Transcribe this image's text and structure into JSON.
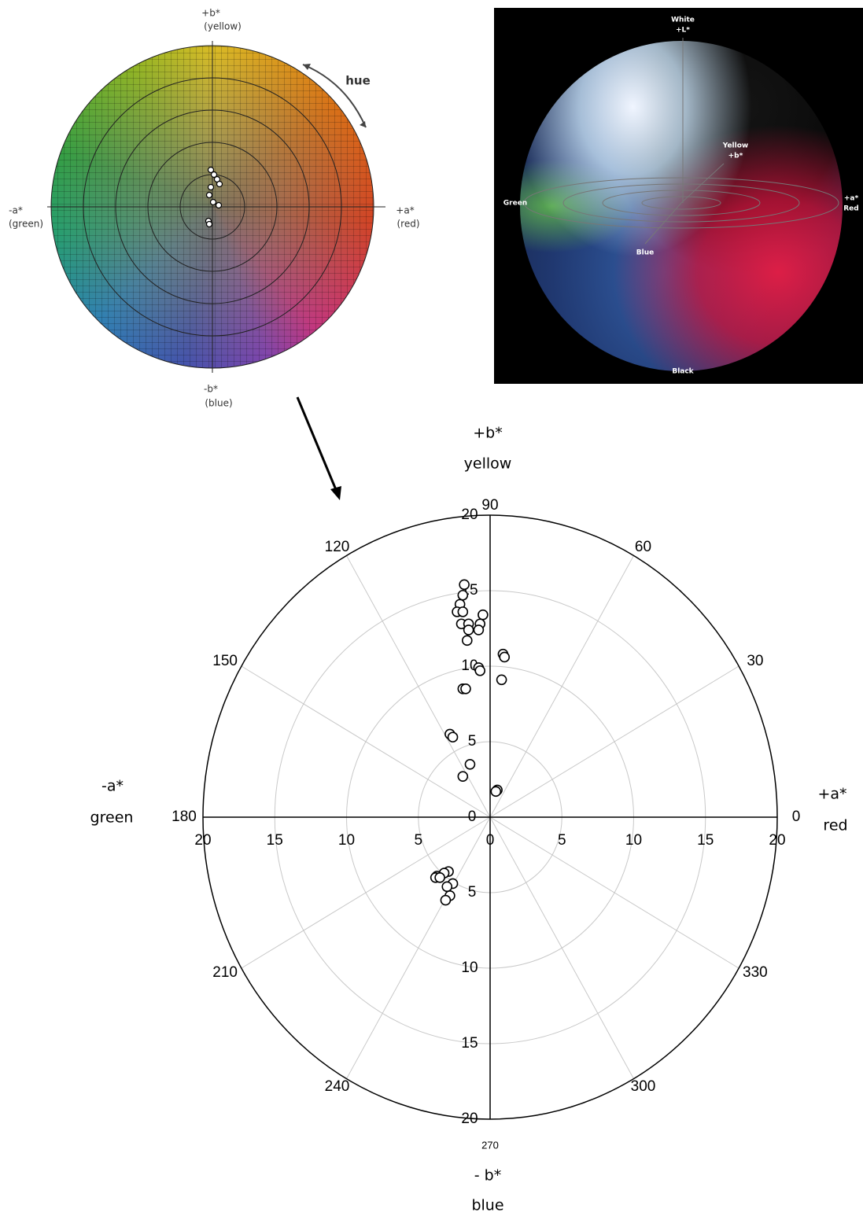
{
  "color_wheel": {
    "labels": [
      "+b*",
      "(yellow)",
      "-a*",
      "(green)",
      "+a*",
      "(red)",
      "-b*",
      "(blue)",
      "hue"
    ]
  },
  "sphere": {
    "labels": [
      "White",
      "+L*",
      "Yellow",
      "+b*",
      "Green",
      "+a*",
      "Red",
      "Blue",
      "Black"
    ]
  },
  "chart_data": {
    "type": "scatter",
    "axis_labels": [
      "+b*",
      "yellow",
      "-a*",
      "green",
      "+a*",
      "red",
      "- b*",
      "blue"
    ],
    "angle_ticks": [
      0,
      30,
      60,
      90,
      120,
      150,
      180,
      210,
      240,
      270,
      300,
      330
    ],
    "rlim": [
      0,
      20
    ],
    "rticks": [
      0,
      5,
      10,
      15,
      20
    ],
    "x": [
      -1.8,
      -1.9,
      -2.1,
      -2.3,
      -1.9,
      -0.5,
      -2.0,
      -1.5,
      -0.7,
      -1.5,
      -0.8,
      -1.6,
      0.9,
      1.0,
      -0.8,
      -0.7,
      0.8,
      -1.9,
      -1.7,
      -2.8,
      -2.6,
      -1.4,
      -1.9,
      0.5,
      0.4,
      -2.9,
      -3.2,
      -3.7,
      -3.8,
      -3.5,
      -2.6,
      -3.0,
      -2.8,
      -3.1
    ],
    "y": [
      15.4,
      14.7,
      14.1,
      13.6,
      13.6,
      13.4,
      12.8,
      12.8,
      12.8,
      12.4,
      12.4,
      11.7,
      10.8,
      10.6,
      9.9,
      9.7,
      9.1,
      8.5,
      8.5,
      5.5,
      5.3,
      3.5,
      2.7,
      1.8,
      1.7,
      -3.6,
      -3.7,
      -3.9,
      -4.0,
      -4.0,
      -4.4,
      -4.6,
      -5.2,
      -5.5
    ]
  }
}
